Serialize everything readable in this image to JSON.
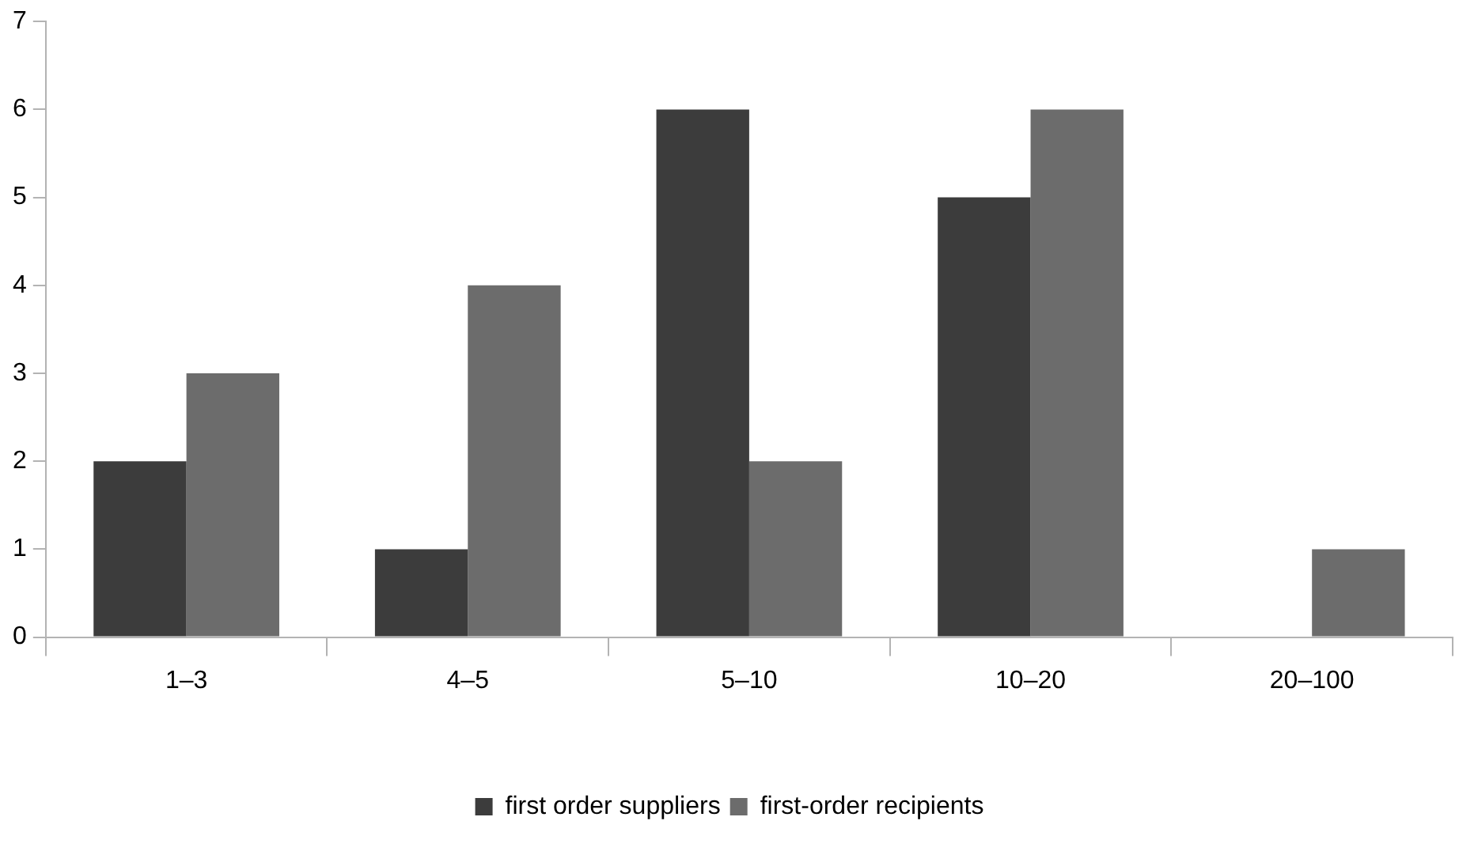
{
  "chart_data": {
    "type": "bar",
    "categories": [
      "1–3",
      "4–5",
      "5–10",
      "10–20",
      "20–100"
    ],
    "series": [
      {
        "name": "first order suppliers",
        "color": "#3c3c3c",
        "values": [
          2,
          1,
          6,
          5,
          0
        ]
      },
      {
        "name": "first-order recipients",
        "color": "#6c6c6c",
        "values": [
          3,
          4,
          2,
          6,
          1
        ]
      }
    ],
    "ylim": [
      0,
      7
    ],
    "yticks": [
      0,
      1,
      2,
      3,
      4,
      5,
      6,
      7
    ],
    "grid": false,
    "legend": "bottom"
  }
}
